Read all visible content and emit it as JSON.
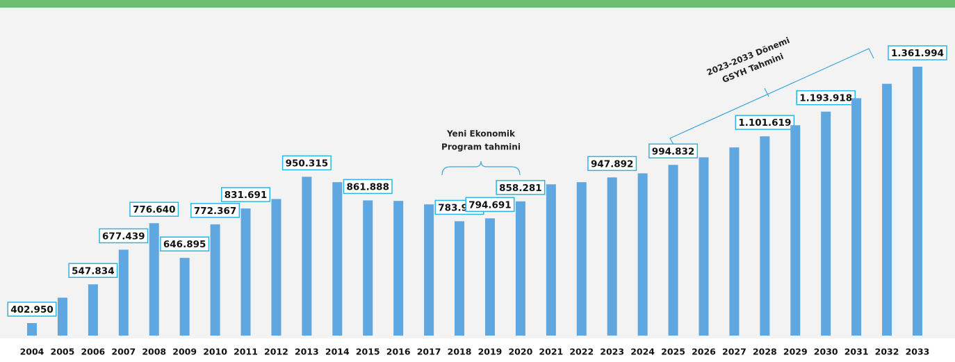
{
  "chart_data": {
    "type": "bar",
    "categories": [
      "2004",
      "2005",
      "2006",
      "2007",
      "2008",
      "2009",
      "2010",
      "2011",
      "2012",
      "2013",
      "2014",
      "2015",
      "2016",
      "2017",
      "2018",
      "2019",
      "2020",
      "2021",
      "2022",
      "2023",
      "2024",
      "2025",
      "2026",
      "2027",
      "2028",
      "2029",
      "2030",
      "2031",
      "2032",
      "2033"
    ],
    "values": [
      402950,
      498000,
      547834,
      677439,
      776640,
      646895,
      772367,
      831691,
      867000,
      950315,
      930000,
      861888,
      860000,
      847000,
      783942,
      794691,
      858281,
      922000,
      930000,
      947892,
      963000,
      994832,
      1023000,
      1060000,
      1101619,
      1143000,
      1193918,
      1244000,
      1298000,
      1361994
    ],
    "value_labels": [
      "402.950",
      null,
      "547.834",
      "677.439",
      "776.640",
      "646.895",
      "772.367",
      "831.691",
      null,
      "950.315",
      null,
      "861.888",
      null,
      null,
      "783.942",
      "794.691",
      "858.281",
      null,
      null,
      "947.892",
      null,
      "994.832",
      null,
      null,
      "1.101.619",
      null,
      "1.193.918",
      null,
      null,
      "1.361.994"
    ],
    "color": "#5ea7e0",
    "annotations": [
      {
        "lines": [
          "Yeni Ekonomik",
          "Program tahmini"
        ]
      },
      {
        "lines": [
          "2023-2033 Dönemi",
          "GSYH Tahmini"
        ]
      }
    ]
  }
}
